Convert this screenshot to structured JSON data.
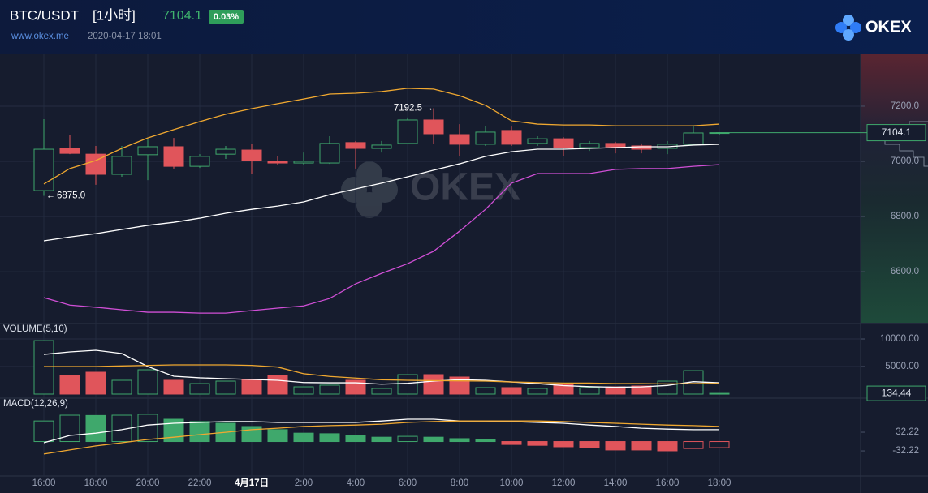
{
  "header": {
    "pair": "BTC/USDT",
    "interval": "[1小时]",
    "price": "7104.1",
    "change": "0.03%",
    "site": "www.okex.me",
    "time": "2020-04-17 18:01",
    "brand": "OKEX"
  },
  "watermark": "OKEX",
  "chart_data": [
    {
      "type": "candlestick",
      "categories": [
        "16:00",
        null,
        "18:00",
        null,
        "20:00",
        null,
        "22:00",
        null,
        "4月17日",
        null,
        "2:00",
        null,
        "4:00",
        null,
        "6:00",
        null,
        "8:00",
        null,
        "10:00",
        null,
        "12:00",
        null,
        "14:00",
        null,
        "16:00",
        null,
        "18:00"
      ],
      "open": [
        6894,
        7047,
        7026,
        6953,
        7024,
        7053,
        6982,
        7026,
        7041,
        7000,
        6994,
        6994,
        7068,
        7047,
        7065,
        7150,
        7097,
        7062,
        7112,
        7065,
        7082,
        7050,
        7065,
        7056,
        7047,
        7062,
        7103
      ],
      "high": [
        7153,
        7094,
        7056,
        7056,
        7079,
        7085,
        7026,
        7056,
        7062,
        7018,
        7032,
        7091,
        7074,
        7074,
        7159,
        7192.5,
        7135,
        7129,
        7126,
        7091,
        7088,
        7074,
        7071,
        7065,
        7074,
        7129,
        7106
      ],
      "low": [
        6875,
        7026,
        6915,
        6944,
        6932,
        6974,
        6976,
        7009,
        6956,
        6988,
        6988,
        6991,
        6974,
        7032,
        7062,
        7062,
        7018,
        7056,
        7056,
        7056,
        7018,
        7038,
        7029,
        7029,
        7026,
        7062,
        7097
      ],
      "close": [
        7044,
        7029,
        6953,
        7018,
        7053,
        6982,
        7018,
        7044,
        7003,
        6994,
        7000,
        7065,
        7047,
        7059,
        7150,
        7100,
        7062,
        7106,
        7062,
        7082,
        7050,
        7065,
        7053,
        7044,
        7062,
        7103,
        7104.1
      ],
      "series": [
        {
          "color": "#f0a830",
          "values": [
            6918,
            6974,
            7003,
            7047,
            7085,
            7115,
            7144,
            7171,
            7191,
            7209,
            7226,
            7244,
            7247,
            7253,
            7265,
            7262,
            7238,
            7203,
            7147,
            7135,
            7132,
            7132,
            7129,
            7129,
            7129,
            7129,
            7135
          ]
        },
        {
          "color": "#ffffff",
          "values": [
            6712,
            6726,
            6738,
            6753,
            6768,
            6779,
            6794,
            6812,
            6826,
            6838,
            6853,
            6879,
            6900,
            6921,
            6944,
            6968,
            6991,
            7018,
            7035,
            7044,
            7044,
            7047,
            7050,
            7053,
            7053,
            7059,
            7062
          ]
        },
        {
          "color": "#d04fd6",
          "values": [
            6506,
            6479,
            6471,
            6462,
            6453,
            6453,
            6450,
            6450,
            6459,
            6468,
            6476,
            6503,
            6556,
            6594,
            6629,
            6674,
            6747,
            6826,
            6921,
            6956,
            6956,
            6956,
            6971,
            6974,
            6974,
            6982,
            6988
          ]
        }
      ],
      "annotations": [
        "7192.5",
        "6875.0"
      ],
      "up_color": "#3fa86c",
      "down_color": "#e0555b",
      "ylim": [
        6415,
        7391
      ],
      "yticks": [
        {
          "value": 7200,
          "label": "7200.0"
        },
        {
          "value": 7000,
          "label": "7000.0"
        },
        {
          "value": 6800,
          "label": "6800.0"
        },
        {
          "value": 6600,
          "label": "6600.0"
        }
      ],
      "grid": true
    },
    {
      "type": "bar",
      "title": "VOLUME(5,10)",
      "bar_color": "candle",
      "values": [
        9700,
        3380,
        3970,
        2500,
        4410,
        2500,
        1910,
        2350,
        2650,
        3380,
        1320,
        1620,
        2500,
        1030,
        3530,
        3530,
        3090,
        1180,
        1180,
        1030,
        1760,
        1180,
        1320,
        1470,
        2350,
        4260,
        134.44
      ],
      "series": [
        {
          "color": "#ffffff",
          "values": [
            7200,
            7650,
            7940,
            7350,
            5000,
            3240,
            2950,
            2800,
            2650,
            2500,
            2100,
            2050,
            2050,
            1800,
            1960,
            2350,
            2610,
            2500,
            2200,
            1900,
            1550,
            1350,
            1250,
            1300,
            1570,
            2250,
            2050
          ]
        },
        {
          "color": "#f0a830",
          "values": [
            5000,
            5000,
            5000,
            5100,
            5200,
            5300,
            5300,
            5300,
            5200,
            4900,
            3700,
            3200,
            2900,
            2600,
            2500,
            2450,
            2400,
            2350,
            2200,
            2100,
            2000,
            2000,
            1900,
            1900,
            1850,
            1900,
            1950
          ]
        }
      ],
      "ylim": [
        0,
        12650
      ],
      "yticks": [
        {
          "value": 10000,
          "label": "10000.00"
        },
        {
          "value": 5000,
          "label": "5000.00"
        }
      ],
      "grid": true
    },
    {
      "type": "bar",
      "title": "MACD(12,26,9)",
      "bar_color": "sign",
      "values": [
        71,
        91,
        90,
        91,
        94,
        77,
        69,
        63,
        52,
        41,
        29,
        27,
        21,
        15,
        18,
        15,
        10,
        7,
        -10,
        -13,
        -18,
        -21,
        -29,
        -29,
        -32,
        -24,
        -21
      ],
      "series": [
        {
          "color": "#ffffff",
          "values": [
            -4,
            21,
            29,
            41,
            57,
            63,
            66,
            69,
            69,
            66,
            66,
            66,
            66,
            71,
            77,
            77,
            71,
            71,
            69,
            66,
            63,
            57,
            52,
            46,
            43,
            41,
            41
          ]
        },
        {
          "color": "#f0a830",
          "values": [
            -43,
            -29,
            -15,
            -4,
            7,
            15,
            24,
            32,
            41,
            46,
            52,
            55,
            57,
            60,
            66,
            69,
            71,
            71,
            71,
            71,
            69,
            66,
            63,
            60,
            57,
            55,
            52
          ]
        }
      ],
      "ylim": [
        -116,
        147
      ],
      "yticks": [
        32.22,
        -32.22
      ],
      "grid": false
    }
  ]
}
